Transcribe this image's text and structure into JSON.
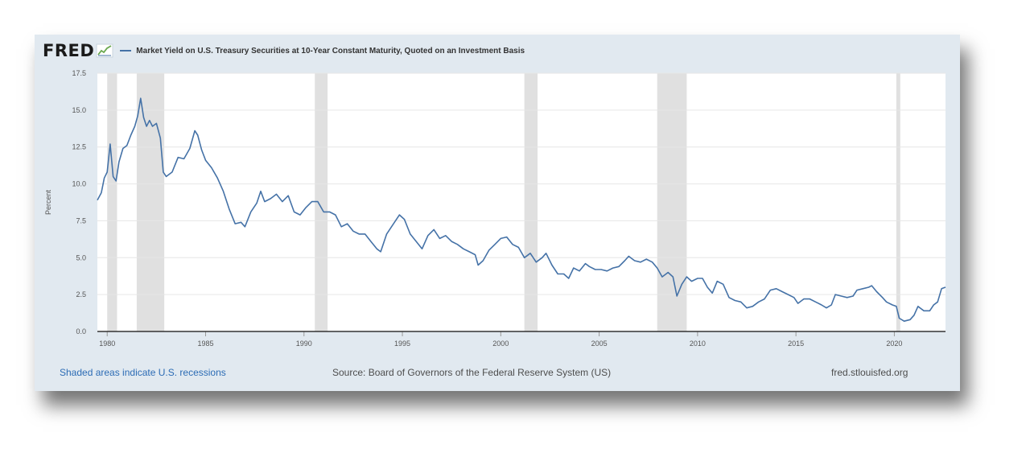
{
  "header": {
    "logo_text": "FRED",
    "legend_label": "Market Yield on U.S. Treasury Securities at 10-Year Constant Maturity, Quoted on an Investment Basis"
  },
  "footer": {
    "recessions_note": "Shaded areas indicate U.S. recessions",
    "source": "Source: Board of Governors of the Federal Reserve System (US)",
    "site": "fred.stlouisfed.org"
  },
  "colors": {
    "line": "#4572a7",
    "recession": "#e0e0e0",
    "card_bg": "#e1e9f0",
    "grid": "#e6e6e6"
  },
  "chart_data": {
    "type": "line",
    "ylabel": "Percent",
    "xlabel": "",
    "xlim": [
      1979.5,
      2022.6
    ],
    "ylim": [
      0,
      17.5
    ],
    "yticks": [
      0.0,
      2.5,
      5.0,
      7.5,
      10.0,
      12.5,
      15.0,
      17.5
    ],
    "ytick_labels": [
      "0.0",
      "2.5",
      "5.0",
      "7.5",
      "10.0",
      "12.5",
      "15.0",
      "17.5"
    ],
    "xticks": [
      1980,
      1985,
      1990,
      1995,
      2000,
      2005,
      2010,
      2015,
      2020
    ],
    "xtick_labels": [
      "1980",
      "1985",
      "1990",
      "1995",
      "2000",
      "2005",
      "2010",
      "2015",
      "2020"
    ],
    "grid": true,
    "recessions": [
      [
        1980.0,
        1980.5
      ],
      [
        1981.5,
        1982.9
      ],
      [
        1990.55,
        1991.2
      ],
      [
        2001.2,
        2001.87
      ],
      [
        2007.95,
        2009.45
      ],
      [
        2020.1,
        2020.3
      ]
    ],
    "series": [
      {
        "x": [
          1979.5,
          1979.7,
          1979.85,
          1980.0,
          1980.15,
          1980.3,
          1980.45,
          1980.6,
          1980.8,
          1981.0,
          1981.2,
          1981.4,
          1981.55,
          1981.7,
          1981.85,
          1982.0,
          1982.15,
          1982.3,
          1982.5,
          1982.7,
          1982.85,
          1983.0,
          1983.3,
          1983.6,
          1983.9,
          1984.2,
          1984.45,
          1984.6,
          1984.8,
          1985.0,
          1985.3,
          1985.6,
          1985.9,
          1986.2,
          1986.5,
          1986.8,
          1987.0,
          1987.3,
          1987.6,
          1987.8,
          1988.0,
          1988.3,
          1988.6,
          1988.9,
          1989.2,
          1989.5,
          1989.8,
          1990.1,
          1990.4,
          1990.7,
          1991.0,
          1991.3,
          1991.6,
          1991.9,
          1992.2,
          1992.5,
          1992.8,
          1993.1,
          1993.4,
          1993.7,
          1993.9,
          1994.2,
          1994.5,
          1994.85,
          1995.1,
          1995.4,
          1995.7,
          1996.0,
          1996.3,
          1996.6,
          1996.9,
          1997.2,
          1997.5,
          1997.8,
          1998.1,
          1998.4,
          1998.7,
          1998.85,
          1999.1,
          1999.4,
          1999.7,
          2000.0,
          2000.3,
          2000.6,
          2000.9,
          2001.2,
          2001.5,
          2001.8,
          2002.1,
          2002.3,
          2002.6,
          2002.9,
          2003.2,
          2003.45,
          2003.7,
          2004.0,
          2004.3,
          2004.5,
          2004.8,
          2005.1,
          2005.4,
          2005.7,
          2006.0,
          2006.3,
          2006.5,
          2006.8,
          2007.1,
          2007.4,
          2007.7,
          2007.95,
          2008.2,
          2008.5,
          2008.75,
          2008.95,
          2009.2,
          2009.45,
          2009.7,
          2010.0,
          2010.25,
          2010.5,
          2010.75,
          2011.0,
          2011.3,
          2011.6,
          2011.9,
          2012.2,
          2012.5,
          2012.8,
          2013.1,
          2013.4,
          2013.7,
          2014.0,
          2014.3,
          2014.6,
          2014.9,
          2015.1,
          2015.4,
          2015.7,
          2016.0,
          2016.3,
          2016.55,
          2016.8,
          2017.0,
          2017.3,
          2017.6,
          2017.9,
          2018.1,
          2018.4,
          2018.7,
          2018.85,
          2019.1,
          2019.4,
          2019.6,
          2019.9,
          2020.1,
          2020.25,
          2020.5,
          2020.8,
          2021.0,
          2021.2,
          2021.5,
          2021.8,
          2022.0,
          2022.2,
          2022.4,
          2022.6
        ],
        "y": [
          8.9,
          9.4,
          10.4,
          10.8,
          12.7,
          10.5,
          10.2,
          11.5,
          12.4,
          12.6,
          13.3,
          13.9,
          14.6,
          15.8,
          14.5,
          13.9,
          14.3,
          13.9,
          14.1,
          13.1,
          10.8,
          10.5,
          10.8,
          11.8,
          11.7,
          12.4,
          13.6,
          13.3,
          12.3,
          11.6,
          11.1,
          10.4,
          9.5,
          8.3,
          7.3,
          7.4,
          7.1,
          8.1,
          8.7,
          9.5,
          8.8,
          9.0,
          9.3,
          8.8,
          9.2,
          8.1,
          7.9,
          8.4,
          8.8,
          8.8,
          8.1,
          8.1,
          7.9,
          7.1,
          7.3,
          6.8,
          6.6,
          6.6,
          6.1,
          5.6,
          5.4,
          6.6,
          7.2,
          7.9,
          7.6,
          6.6,
          6.1,
          5.6,
          6.5,
          6.9,
          6.3,
          6.5,
          6.1,
          5.9,
          5.6,
          5.4,
          5.2,
          4.5,
          4.8,
          5.5,
          5.9,
          6.3,
          6.4,
          5.9,
          5.7,
          5.0,
          5.3,
          4.7,
          5.0,
          5.3,
          4.5,
          3.9,
          3.9,
          3.6,
          4.3,
          4.1,
          4.6,
          4.4,
          4.2,
          4.2,
          4.1,
          4.3,
          4.4,
          4.8,
          5.1,
          4.8,
          4.7,
          4.9,
          4.7,
          4.3,
          3.7,
          4.0,
          3.7,
          2.4,
          3.2,
          3.7,
          3.4,
          3.6,
          3.6,
          3.0,
          2.6,
          3.4,
          3.2,
          2.3,
          2.1,
          2.0,
          1.6,
          1.7,
          2.0,
          2.2,
          2.8,
          2.9,
          2.7,
          2.5,
          2.3,
          1.9,
          2.2,
          2.2,
          2.0,
          1.8,
          1.6,
          1.8,
          2.5,
          2.4,
          2.3,
          2.4,
          2.8,
          2.9,
          3.0,
          3.1,
          2.7,
          2.3,
          2.0,
          1.8,
          1.7,
          0.9,
          0.7,
          0.8,
          1.1,
          1.7,
          1.4,
          1.4,
          1.8,
          2.0,
          2.9,
          3.0
        ]
      }
    ]
  }
}
